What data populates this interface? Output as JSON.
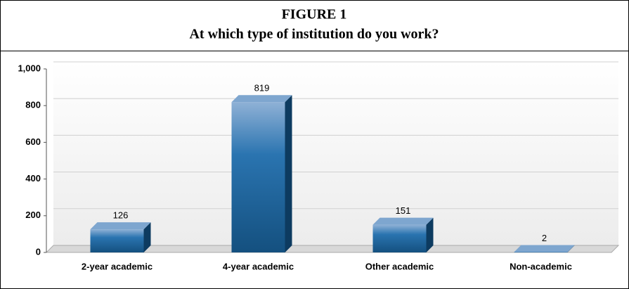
{
  "chart_data": {
    "type": "bar3d",
    "title": "FIGURE 1",
    "subtitle": "At which type of institution do you work?",
    "categories": [
      "2-year academic",
      "4-year academic",
      "Other academic",
      "Non-academic"
    ],
    "values": [
      126,
      819,
      151,
      2
    ],
    "color": "#1f6aa5",
    "ylim": [
      0,
      1000
    ],
    "yticks": [
      0,
      200,
      400,
      600,
      800,
      {
        "value": 1000,
        "label": "1,000"
      }
    ],
    "grid": true
  }
}
